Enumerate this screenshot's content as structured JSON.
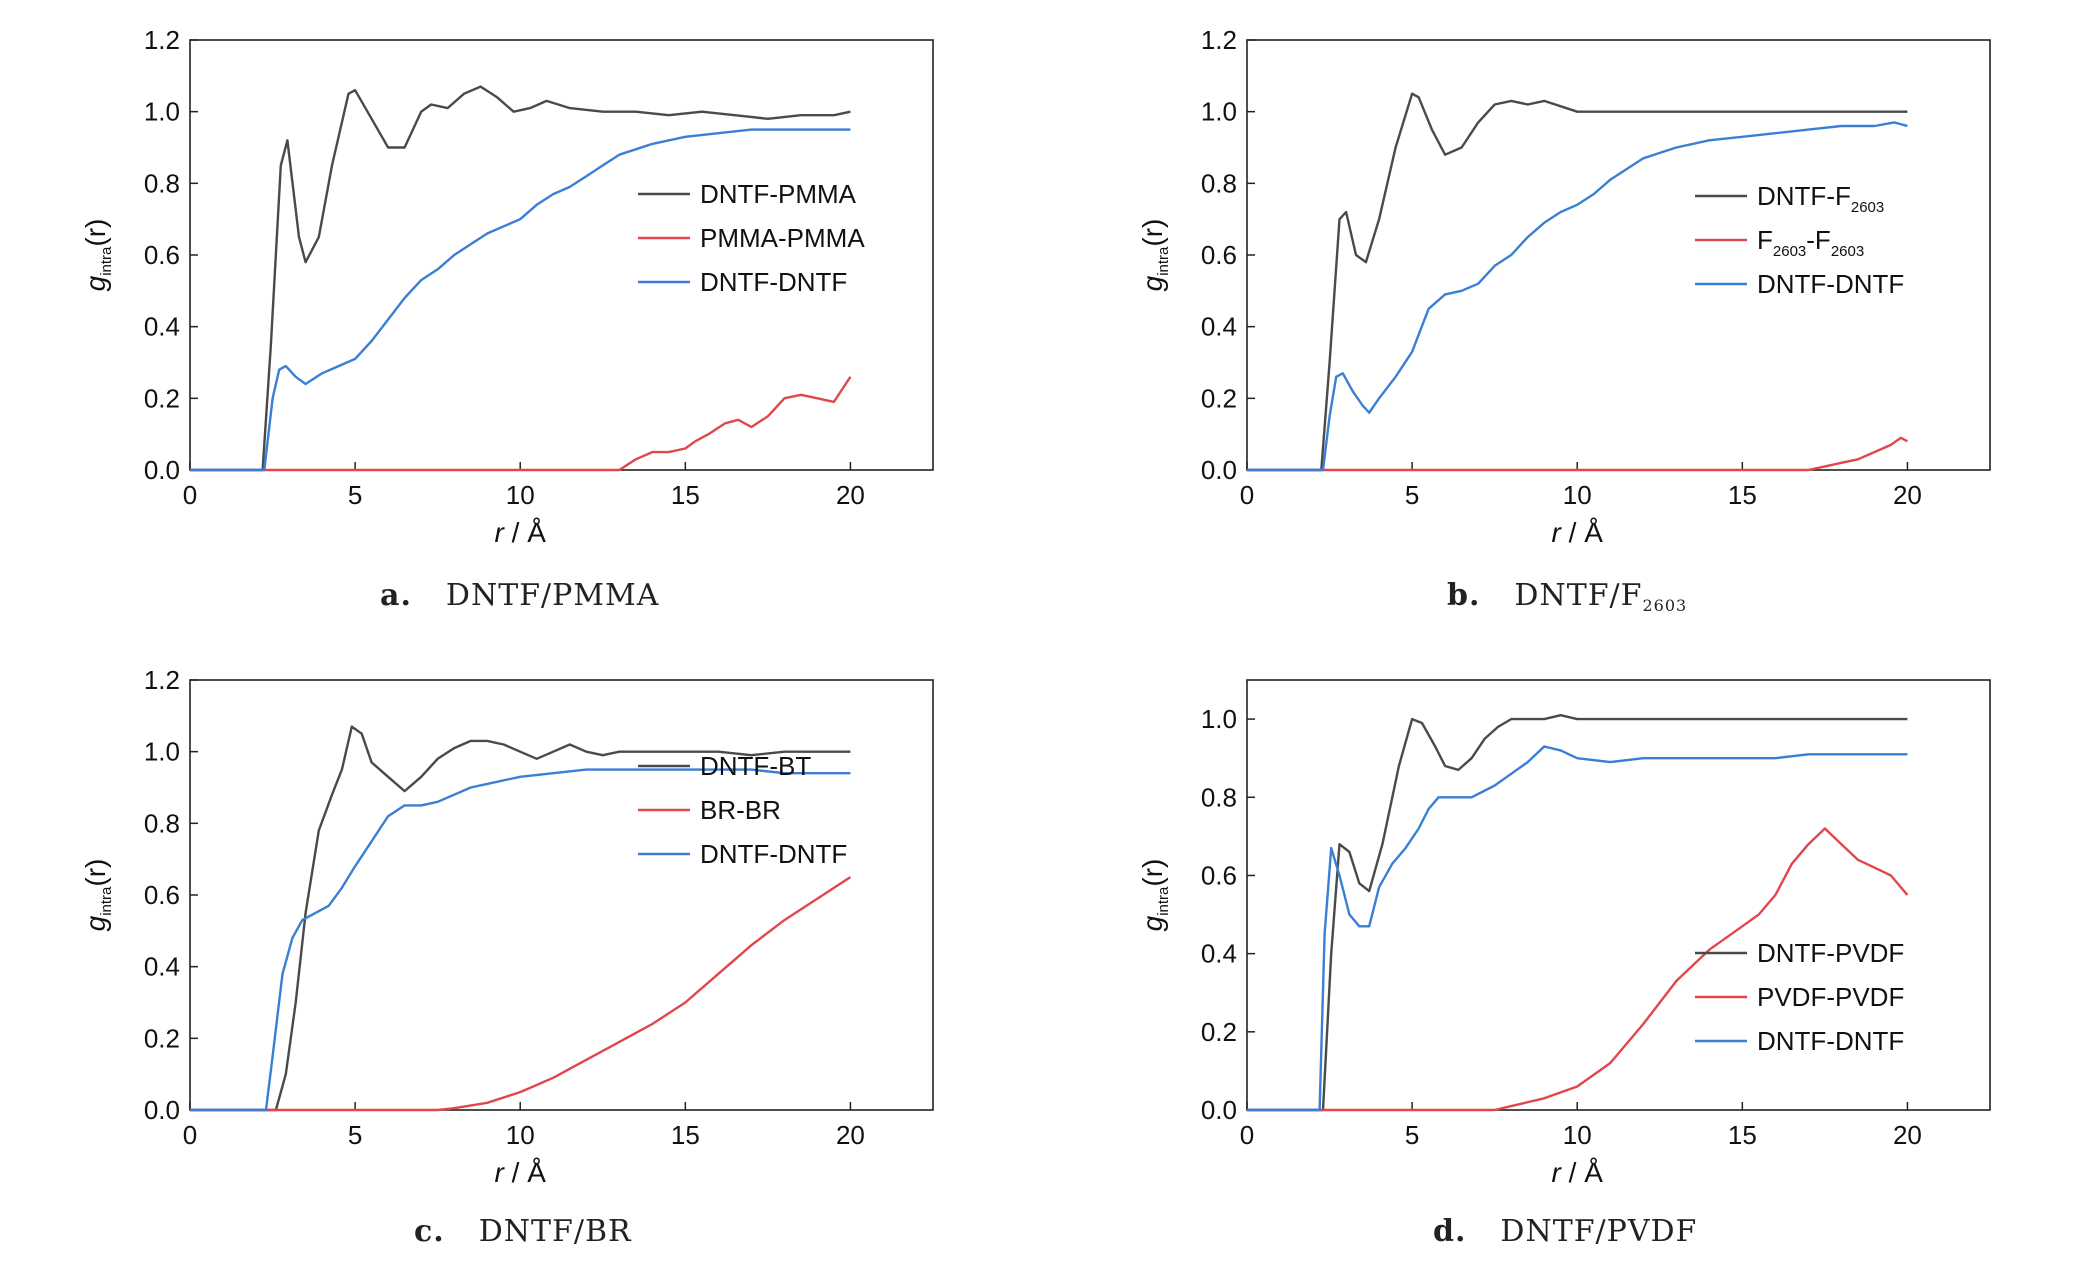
{
  "chart_data": [
    {
      "type": "line",
      "panel_label": "a.",
      "caption_main": "DNTF/PMMA",
      "caption_sub": "",
      "xlabel_var": "r",
      "xlabel_unit": " / Å",
      "ylabel_var": "g",
      "ylabel_sub": "intra",
      "ylabel_arg": "(r)",
      "xlim": [
        0,
        22.5
      ],
      "ylim": [
        0,
        1.2
      ],
      "xticks": [
        0,
        5,
        10,
        15,
        20
      ],
      "xtick_labels": [
        "0",
        "5",
        "10",
        "15",
        "20"
      ],
      "yticks": [
        0,
        0.2,
        0.4,
        0.6,
        0.8,
        1.0,
        1.2
      ],
      "ytick_labels": [
        "0.0",
        "0.2",
        "0.4",
        "0.6",
        "0.8",
        "1.0",
        "1.2"
      ],
      "legend_position": "right-middle",
      "series": [
        {
          "name": "DNTF-PMMA",
          "name_parts": [
            [
              "DNTF-PMMA",
              false
            ]
          ],
          "color": "#4a4a4a",
          "x": [
            0,
            2.2,
            2.45,
            2.75,
            2.95,
            3.3,
            3.5,
            3.9,
            4.3,
            4.8,
            5.0,
            5.5,
            6.0,
            6.5,
            7.0,
            7.3,
            7.8,
            8.3,
            8.8,
            9.3,
            9.8,
            10.3,
            10.8,
            11.5,
            12.5,
            13.5,
            14.5,
            15.5,
            16.5,
            17.5,
            18.5,
            19.5,
            20.0
          ],
          "y": [
            0,
            0,
            0.35,
            0.85,
            0.92,
            0.65,
            0.58,
            0.65,
            0.85,
            1.05,
            1.06,
            0.98,
            0.9,
            0.9,
            1.0,
            1.02,
            1.01,
            1.05,
            1.07,
            1.04,
            1.0,
            1.01,
            1.03,
            1.01,
            1.0,
            1.0,
            0.99,
            1.0,
            0.99,
            0.98,
            0.99,
            0.99,
            1.0
          ]
        },
        {
          "name": "PMMA-PMMA",
          "name_parts": [
            [
              "PMMA-PMMA",
              false
            ]
          ],
          "color": "#e0474c",
          "x": [
            0,
            13.0,
            13.5,
            14.0,
            14.5,
            15.0,
            15.3,
            15.7,
            16.2,
            16.6,
            17.0,
            17.5,
            18.0,
            18.5,
            19.0,
            19.5,
            20.0
          ],
          "y": [
            0,
            0,
            0.03,
            0.05,
            0.05,
            0.06,
            0.08,
            0.1,
            0.13,
            0.14,
            0.12,
            0.15,
            0.2,
            0.21,
            0.2,
            0.19,
            0.26
          ]
        },
        {
          "name": "DNTF-DNTF",
          "name_parts": [
            [
              "DNTF-DNTF",
              false
            ]
          ],
          "color": "#3a7fd4",
          "x": [
            0,
            2.25,
            2.5,
            2.7,
            2.9,
            3.2,
            3.5,
            4.0,
            4.5,
            5.0,
            5.5,
            6.0,
            6.5,
            7.0,
            7.5,
            8.0,
            8.5,
            9.0,
            9.5,
            10.0,
            10.5,
            11.0,
            11.5,
            12.0,
            12.5,
            13.0,
            14.0,
            15.0,
            16.0,
            17.0,
            18.0,
            19.0,
            20.0
          ],
          "y": [
            0,
            0,
            0.2,
            0.28,
            0.29,
            0.26,
            0.24,
            0.27,
            0.29,
            0.31,
            0.36,
            0.42,
            0.48,
            0.53,
            0.56,
            0.6,
            0.63,
            0.66,
            0.68,
            0.7,
            0.74,
            0.77,
            0.79,
            0.82,
            0.85,
            0.88,
            0.91,
            0.93,
            0.94,
            0.95,
            0.95,
            0.95,
            0.95
          ]
        }
      ]
    },
    {
      "type": "line",
      "panel_label": "b.",
      "caption_main": "DNTF/F",
      "caption_sub": "2603",
      "xlabel_var": "r",
      "xlabel_unit": " / Å",
      "ylabel_var": "g",
      "ylabel_sub": "intra",
      "ylabel_arg": "(r)",
      "xlim": [
        0,
        22.5
      ],
      "ylim": [
        0,
        1.2
      ],
      "xticks": [
        0,
        5,
        10,
        15,
        20
      ],
      "xtick_labels": [
        "0",
        "5",
        "10",
        "15",
        "20"
      ],
      "yticks": [
        0,
        0.2,
        0.4,
        0.6,
        0.8,
        1.0,
        1.2
      ],
      "ytick_labels": [
        "0.0",
        "0.2",
        "0.4",
        "0.6",
        "0.8",
        "1.0",
        "1.2"
      ],
      "legend_position": "right-middle",
      "series": [
        {
          "name": "DNTF-F2603",
          "name_parts": [
            [
              "DNTF-F",
              false
            ],
            [
              "2603",
              true
            ]
          ],
          "color": "#4a4a4a",
          "x": [
            0,
            2.25,
            2.5,
            2.8,
            3.0,
            3.3,
            3.6,
            4.0,
            4.5,
            5.0,
            5.2,
            5.6,
            6.0,
            6.5,
            7.0,
            7.5,
            8.0,
            8.5,
            9.0,
            10.0,
            11.0,
            12.0,
            13.0,
            14.0,
            15.0,
            16.0,
            17.0,
            18.0,
            19.0,
            20.0
          ],
          "y": [
            0,
            0,
            0.3,
            0.7,
            0.72,
            0.6,
            0.58,
            0.7,
            0.9,
            1.05,
            1.04,
            0.95,
            0.88,
            0.9,
            0.97,
            1.02,
            1.03,
            1.02,
            1.03,
            1.0,
            1.0,
            1.0,
            1.0,
            1.0,
            1.0,
            1.0,
            1.0,
            1.0,
            1.0,
            1.0
          ]
        },
        {
          "name": "F2603-F2603",
          "name_parts": [
            [
              "F",
              false
            ],
            [
              "2603",
              true
            ],
            [
              "-F",
              false
            ],
            [
              "2603",
              true
            ]
          ],
          "color": "#e0474c",
          "x": [
            0,
            17.0,
            17.5,
            18.0,
            18.5,
            19.0,
            19.5,
            19.8,
            20.0
          ],
          "y": [
            0,
            0,
            0.01,
            0.02,
            0.03,
            0.05,
            0.07,
            0.09,
            0.08
          ]
        },
        {
          "name": "DNTF-DNTF",
          "name_parts": [
            [
              "DNTF-DNTF",
              false
            ]
          ],
          "color": "#3a7fd4",
          "x": [
            0,
            2.3,
            2.5,
            2.7,
            2.9,
            3.2,
            3.5,
            3.7,
            4.0,
            4.5,
            5.0,
            5.5,
            6.0,
            6.5,
            7.0,
            7.5,
            8.0,
            8.5,
            9.0,
            9.5,
            10.0,
            10.5,
            11.0,
            11.5,
            12.0,
            13.0,
            14.0,
            15.0,
            16.0,
            17.0,
            18.0,
            19.0,
            19.6,
            20.0
          ],
          "y": [
            0,
            0,
            0.15,
            0.26,
            0.27,
            0.22,
            0.18,
            0.16,
            0.2,
            0.26,
            0.33,
            0.45,
            0.49,
            0.5,
            0.52,
            0.57,
            0.6,
            0.65,
            0.69,
            0.72,
            0.74,
            0.77,
            0.81,
            0.84,
            0.87,
            0.9,
            0.92,
            0.93,
            0.94,
            0.95,
            0.96,
            0.96,
            0.97,
            0.96
          ]
        }
      ]
    },
    {
      "type": "line",
      "panel_label": "c.",
      "caption_main": "DNTF/BR",
      "caption_sub": "",
      "xlabel_var": "r",
      "xlabel_unit": " / Å",
      "ylabel_var": "g",
      "ylabel_sub": "intra",
      "ylabel_arg": "(r)",
      "xlim": [
        0,
        22.5
      ],
      "ylim": [
        0,
        1.2
      ],
      "xticks": [
        0,
        5,
        10,
        15,
        20
      ],
      "xtick_labels": [
        "0",
        "5",
        "10",
        "15",
        "20"
      ],
      "yticks": [
        0,
        0.2,
        0.4,
        0.6,
        0.8,
        1.0,
        1.2
      ],
      "ytick_labels": [
        "0.0",
        "0.2",
        "0.4",
        "0.6",
        "0.8",
        "1.0",
        "1.2"
      ],
      "legend_position": "right-middle",
      "series": [
        {
          "name": "DNTF-BT",
          "name_parts": [
            [
              "DNTF-BT",
              false
            ]
          ],
          "color": "#4a4a4a",
          "x": [
            0,
            2.6,
            2.9,
            3.2,
            3.5,
            3.9,
            4.3,
            4.6,
            4.9,
            5.2,
            5.5,
            6.0,
            6.5,
            7.0,
            7.5,
            8.0,
            8.5,
            9.0,
            9.5,
            10.0,
            10.5,
            11.0,
            11.5,
            12.0,
            12.5,
            13.0,
            14.0,
            15.0,
            16.0,
            17.0,
            18.0,
            19.0,
            20.0
          ],
          "y": [
            0,
            0,
            0.1,
            0.3,
            0.55,
            0.78,
            0.88,
            0.95,
            1.07,
            1.05,
            0.97,
            0.93,
            0.89,
            0.93,
            0.98,
            1.01,
            1.03,
            1.03,
            1.02,
            1.0,
            0.98,
            1.0,
            1.02,
            1.0,
            0.99,
            1.0,
            1.0,
            1.0,
            1.0,
            0.99,
            1.0,
            1.0,
            1.0
          ]
        },
        {
          "name": "BR-BR",
          "name_parts": [
            [
              "BR-BR",
              false
            ]
          ],
          "color": "#e0474c",
          "x": [
            0,
            7.5,
            8.0,
            9.0,
            10.0,
            11.0,
            12.0,
            13.0,
            14.0,
            15.0,
            16.0,
            17.0,
            18.0,
            19.0,
            20.0
          ],
          "y": [
            0,
            0,
            0.005,
            0.02,
            0.05,
            0.09,
            0.14,
            0.19,
            0.24,
            0.3,
            0.38,
            0.46,
            0.53,
            0.59,
            0.65
          ]
        },
        {
          "name": "DNTF-DNTF",
          "name_parts": [
            [
              "DNTF-DNTF",
              false
            ]
          ],
          "color": "#3a7fd4",
          "x": [
            0,
            2.3,
            2.5,
            2.8,
            3.1,
            3.4,
            3.8,
            4.2,
            4.6,
            5.0,
            5.5,
            6.0,
            6.5,
            7.0,
            7.5,
            8.0,
            8.5,
            9.0,
            10.0,
            11.0,
            12.0,
            13.0,
            14.0,
            15.0,
            16.0,
            17.0,
            18.0,
            19.0,
            20.0
          ],
          "y": [
            0,
            0,
            0.15,
            0.38,
            0.48,
            0.53,
            0.55,
            0.57,
            0.62,
            0.68,
            0.75,
            0.82,
            0.85,
            0.85,
            0.86,
            0.88,
            0.9,
            0.91,
            0.93,
            0.94,
            0.95,
            0.95,
            0.95,
            0.95,
            0.95,
            0.95,
            0.94,
            0.94,
            0.94
          ]
        }
      ]
    },
    {
      "type": "line",
      "panel_label": "d.",
      "caption_main": "DNTF/PVDF",
      "caption_sub": "",
      "xlabel_var": "r",
      "xlabel_unit": " / Å",
      "ylabel_var": "g",
      "ylabel_sub": "intra",
      "ylabel_arg": "(r)",
      "xlim": [
        0,
        22.5
      ],
      "ylim": [
        0,
        1.1
      ],
      "xticks": [
        0,
        5,
        10,
        15,
        20
      ],
      "xtick_labels": [
        "0",
        "5",
        "10",
        "15",
        "20"
      ],
      "yticks": [
        0,
        0.2,
        0.4,
        0.6,
        0.8,
        1.0
      ],
      "ytick_labels": [
        "0.0",
        "0.2",
        "0.4",
        "0.6",
        "0.8",
        "1.0"
      ],
      "legend_position": "bottom-right",
      "series": [
        {
          "name": "DNTF-PVDF",
          "name_parts": [
            [
              "DNTF-PVDF",
              false
            ]
          ],
          "color": "#4a4a4a",
          "x": [
            0,
            2.3,
            2.55,
            2.8,
            3.1,
            3.4,
            3.7,
            4.1,
            4.6,
            5.0,
            5.3,
            5.7,
            6.0,
            6.4,
            6.8,
            7.2,
            7.6,
            8.0,
            8.5,
            9.0,
            9.5,
            10.0,
            11.0,
            12.0,
            13.0,
            14.0,
            15.0,
            16.0,
            17.0,
            18.0,
            19.0,
            20.0
          ],
          "y": [
            0,
            0,
            0.4,
            0.68,
            0.66,
            0.58,
            0.56,
            0.68,
            0.88,
            1.0,
            0.99,
            0.93,
            0.88,
            0.87,
            0.9,
            0.95,
            0.98,
            1.0,
            1.0,
            1.0,
            1.01,
            1.0,
            1.0,
            1.0,
            1.0,
            1.0,
            1.0,
            1.0,
            1.0,
            1.0,
            1.0,
            1.0
          ]
        },
        {
          "name": "PVDF-PVDF",
          "name_parts": [
            [
              "PVDF-PVDF",
              false
            ]
          ],
          "color": "#e0474c",
          "x": [
            0,
            7.5,
            8.0,
            9.0,
            10.0,
            11.0,
            12.0,
            13.0,
            14.0,
            15.0,
            15.5,
            16.0,
            16.5,
            17.0,
            17.5,
            18.0,
            18.5,
            19.0,
            19.5,
            20.0
          ],
          "y": [
            0,
            0,
            0.01,
            0.03,
            0.06,
            0.12,
            0.22,
            0.33,
            0.41,
            0.47,
            0.5,
            0.55,
            0.63,
            0.68,
            0.72,
            0.68,
            0.64,
            0.62,
            0.6,
            0.55
          ]
        },
        {
          "name": "DNTF-DNTF",
          "name_parts": [
            [
              "DNTF-DNTF",
              false
            ]
          ],
          "color": "#3a7fd4",
          "x": [
            0,
            2.2,
            2.35,
            2.55,
            2.8,
            3.1,
            3.4,
            3.7,
            4.0,
            4.4,
            4.8,
            5.2,
            5.5,
            5.8,
            6.2,
            6.8,
            7.5,
            8.0,
            8.5,
            9.0,
            9.5,
            10.0,
            11.0,
            12.0,
            13.0,
            14.0,
            15.0,
            16.0,
            17.0,
            18.0,
            19.0,
            20.0
          ],
          "y": [
            0,
            0,
            0.45,
            0.67,
            0.6,
            0.5,
            0.47,
            0.47,
            0.57,
            0.63,
            0.67,
            0.72,
            0.77,
            0.8,
            0.8,
            0.8,
            0.83,
            0.86,
            0.89,
            0.93,
            0.92,
            0.9,
            0.89,
            0.9,
            0.9,
            0.9,
            0.9,
            0.9,
            0.91,
            0.91,
            0.91,
            0.91
          ]
        }
      ]
    }
  ]
}
